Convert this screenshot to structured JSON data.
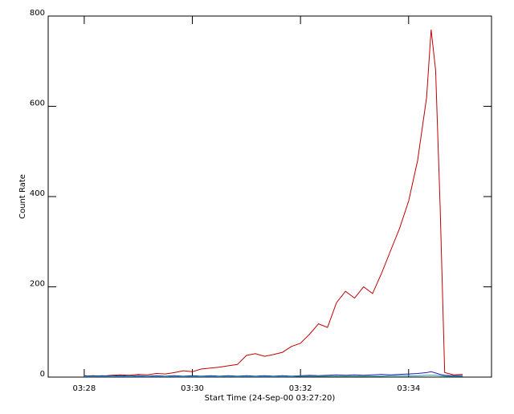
{
  "chart_data": {
    "type": "line",
    "y_label": "Count Rate",
    "x_label": "Start Time (24-Sep-00 03:27:20)",
    "x": [
      "03:28:00",
      "03:28:10",
      "03:28:20",
      "03:28:30",
      "03:28:40",
      "03:28:50",
      "03:29:00",
      "03:29:10",
      "03:29:20",
      "03:29:30",
      "03:29:40",
      "03:29:50",
      "03:30:00",
      "03:30:10",
      "03:30:20",
      "03:30:30",
      "03:30:40",
      "03:30:50",
      "03:31:00",
      "03:31:10",
      "03:31:20",
      "03:31:30",
      "03:31:40",
      "03:31:50",
      "03:32:00",
      "03:32:10",
      "03:32:20",
      "03:32:30",
      "03:32:40",
      "03:32:50",
      "03:33:00",
      "03:33:10",
      "03:33:20",
      "03:33:30",
      "03:33:40",
      "03:33:50",
      "03:34:00",
      "03:34:10",
      "03:34:20",
      "03:34:25",
      "03:34:30",
      "03:34:35",
      "03:34:40",
      "03:34:50",
      "03:35:00"
    ],
    "series": [
      {
        "name": "red",
        "color": "#c00000",
        "values": [
          2,
          3,
          2,
          4,
          5,
          4,
          6,
          5,
          8,
          7,
          10,
          14,
          12,
          18,
          20,
          22,
          25,
          28,
          48,
          52,
          46,
          50,
          55,
          68,
          75,
          95,
          118,
          110,
          165,
          190,
          175,
          200,
          185,
          230,
          280,
          330,
          390,
          480,
          620,
          770,
          680,
          380,
          10,
          5,
          6
        ]
      },
      {
        "name": "blue",
        "color": "#2020c0",
        "values": [
          3,
          2,
          3,
          2,
          3,
          2,
          3,
          2,
          3,
          2,
          3,
          2,
          3,
          2,
          3,
          2,
          3,
          2,
          3,
          2,
          3,
          2,
          3,
          2,
          3,
          4,
          3,
          4,
          5,
          4,
          5,
          4,
          5,
          6,
          5,
          6,
          7,
          8,
          10,
          12,
          9,
          6,
          4,
          3,
          3
        ]
      },
      {
        "name": "cyan",
        "color": "#20a0a0",
        "values": [
          1,
          1,
          1,
          1,
          1,
          1,
          1,
          1,
          1,
          1,
          1,
          1,
          1,
          1,
          1,
          1,
          1,
          1,
          1,
          1,
          1,
          1,
          1,
          1,
          2,
          2,
          2,
          2,
          2,
          2,
          2,
          2,
          2,
          2,
          3,
          3,
          3,
          3,
          4,
          4,
          4,
          3,
          2,
          2,
          2
        ]
      }
    ],
    "xlim": [
      "03:27:20",
      "03:35:32"
    ],
    "xticks": [
      "03:28",
      "03:30",
      "03:32",
      "03:34"
    ],
    "ylim": [
      0,
      800
    ],
    "yticks": [
      0,
      200,
      400,
      600,
      800
    ]
  }
}
